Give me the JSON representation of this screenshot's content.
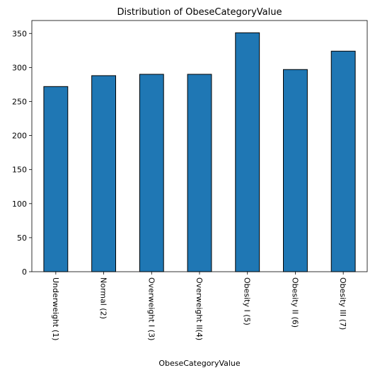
{
  "chart_data": {
    "type": "bar",
    "title": "Distribution of ObeseCategoryValue",
    "xlabel": "ObeseCategoryValue",
    "ylabel": "",
    "categories": [
      "Underweight (1)",
      "Normal (2)",
      "Overweight I (3)",
      "Overweight II(4)",
      "Obesity I (5)",
      "Obesity II (6)",
      "Obesity III (7)"
    ],
    "values": [
      272,
      288,
      290,
      290,
      351,
      297,
      324
    ],
    "ylim": [
      0,
      369
    ],
    "yticks": [
      0,
      50,
      100,
      150,
      200,
      250,
      300,
      350
    ],
    "grid": false,
    "legend": "none",
    "bar_color": "#1f77b4",
    "edge_color": "#000000"
  }
}
